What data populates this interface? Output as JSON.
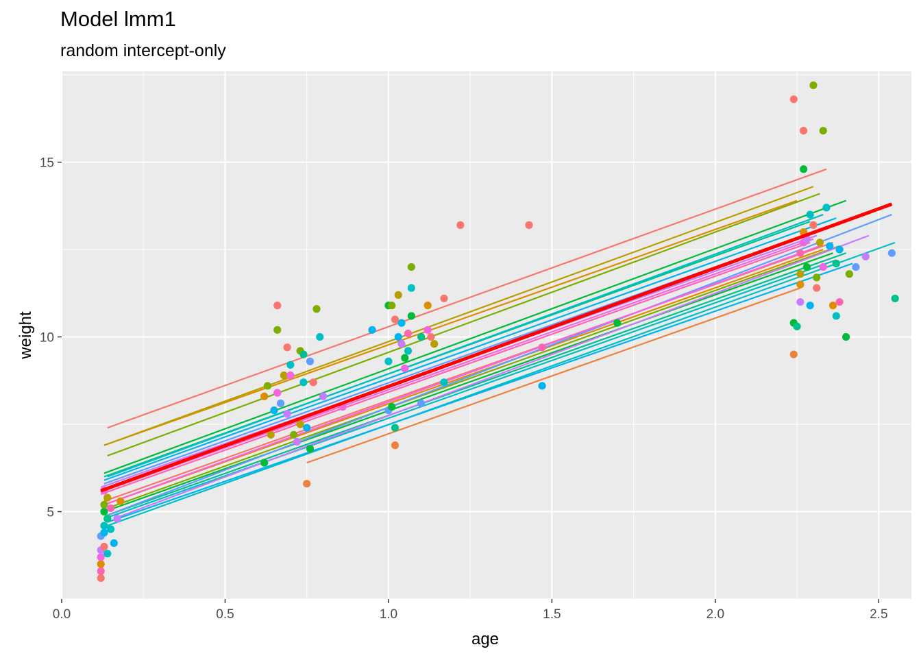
{
  "chart_data": {
    "type": "scatter",
    "title": "Model lmm1",
    "subtitle": "random intercept-only",
    "xlabel": "age",
    "ylabel": "weight",
    "xlim": [
      0.0,
      2.6
    ],
    "ylim": [
      2.5,
      17.6
    ],
    "x_ticks": [
      0.0,
      0.5,
      1.0,
      1.5,
      2.0,
      2.5
    ],
    "x_tick_labels": [
      "0.0",
      "0.5",
      "1.0",
      "1.5",
      "2.0",
      "2.5"
    ],
    "y_ticks": [
      5,
      10,
      15
    ],
    "y_tick_labels": [
      "5",
      "10",
      "15"
    ],
    "grid": true,
    "legend": "none",
    "population_line": {
      "color": "#ff0000",
      "x": [
        0.12,
        2.54
      ],
      "y": [
        5.6,
        13.8
      ]
    },
    "subject_lines": [
      {
        "color": "#f8766d",
        "x": [
          0.14,
          2.34
        ],
        "y": [
          7.4,
          14.8
        ]
      },
      {
        "color": "#de8c00",
        "x": [
          0.13,
          2.25
        ],
        "y": [
          6.9,
          13.9
        ]
      },
      {
        "color": "#b79f00",
        "x": [
          0.13,
          2.3
        ],
        "y": [
          6.9,
          14.3
        ]
      },
      {
        "color": "#7cae00",
        "x": [
          0.14,
          2.32
        ],
        "y": [
          6.6,
          14.1
        ]
      },
      {
        "color": "#00ba38",
        "x": [
          0.13,
          2.4
        ],
        "y": [
          6.1,
          13.9
        ]
      },
      {
        "color": "#00c08b",
        "x": [
          0.13,
          2.29
        ],
        "y": [
          6.0,
          13.3
        ]
      },
      {
        "color": "#00bfc4",
        "x": [
          0.14,
          2.33
        ],
        "y": [
          6.0,
          13.5
        ]
      },
      {
        "color": "#00b4f0",
        "x": [
          0.13,
          2.37
        ],
        "y": [
          5.9,
          13.4
        ]
      },
      {
        "color": "#619cff",
        "x": [
          0.13,
          2.33
        ],
        "y": [
          5.8,
          13.1
        ]
      },
      {
        "color": "#c77cff",
        "x": [
          0.12,
          2.31
        ],
        "y": [
          5.7,
          12.9
        ]
      },
      {
        "color": "#f564e3",
        "x": [
          0.13,
          2.3
        ],
        "y": [
          5.6,
          12.8
        ]
      },
      {
        "color": "#ff64b0",
        "x": [
          0.12,
          2.29
        ],
        "y": [
          5.5,
          12.7
        ]
      },
      {
        "color": "#f8766d",
        "x": [
          0.13,
          2.36
        ],
        "y": [
          5.3,
          12.7
        ]
      },
      {
        "color": "#de8c00",
        "x": [
          0.13,
          2.33
        ],
        "y": [
          5.2,
          12.5
        ]
      },
      {
        "color": "#7cae00",
        "x": [
          0.14,
          2.38
        ],
        "y": [
          5.1,
          12.6
        ]
      },
      {
        "color": "#00ba38",
        "x": [
          0.13,
          2.36
        ],
        "y": [
          5.0,
          12.4
        ]
      },
      {
        "color": "#00c08b",
        "x": [
          0.14,
          2.4
        ],
        "y": [
          4.9,
          12.4
        ]
      },
      {
        "color": "#00bfc4",
        "x": [
          0.13,
          2.37
        ],
        "y": [
          4.8,
          12.2
        ]
      },
      {
        "color": "#619cff",
        "x": [
          0.14,
          2.54
        ],
        "y": [
          4.9,
          13.5
        ]
      },
      {
        "color": "#c77cff",
        "x": [
          0.16,
          2.47
        ],
        "y": [
          4.8,
          12.9
        ]
      },
      {
        "color": "#00bfc4",
        "x": [
          0.14,
          2.55
        ],
        "y": [
          4.6,
          12.7
        ]
      },
      {
        "color": "#00b4f0",
        "x": [
          0.14,
          2.42
        ],
        "y": [
          4.7,
          12.1
        ]
      },
      {
        "color": "#ed813e",
        "x": [
          0.75,
          2.26
        ],
        "y": [
          6.4,
          11.4
        ]
      },
      {
        "color": "#f564e3",
        "x": [
          0.13,
          2.32
        ],
        "y": [
          5.2,
          12.6
        ]
      }
    ],
    "points": [
      {
        "x": 0.12,
        "y": 3.1,
        "color": "#f8766d"
      },
      {
        "x": 0.12,
        "y": 3.3,
        "color": "#ff64b0"
      },
      {
        "x": 0.12,
        "y": 3.5,
        "color": "#de8c00"
      },
      {
        "x": 0.12,
        "y": 3.7,
        "color": "#f564e3"
      },
      {
        "x": 0.12,
        "y": 3.9,
        "color": "#c77cff"
      },
      {
        "x": 0.13,
        "y": 4.0,
        "color": "#f8766d"
      },
      {
        "x": 0.12,
        "y": 4.3,
        "color": "#619cff"
      },
      {
        "x": 0.13,
        "y": 4.4,
        "color": "#00b4f0"
      },
      {
        "x": 0.13,
        "y": 4.6,
        "color": "#00bfc4"
      },
      {
        "x": 0.14,
        "y": 4.8,
        "color": "#00c08b"
      },
      {
        "x": 0.13,
        "y": 5.0,
        "color": "#00ba38"
      },
      {
        "x": 0.13,
        "y": 5.2,
        "color": "#7cae00"
      },
      {
        "x": 0.14,
        "y": 5.4,
        "color": "#b79f00"
      },
      {
        "x": 0.13,
        "y": 5.6,
        "color": "#f564e3"
      },
      {
        "x": 0.14,
        "y": 3.8,
        "color": "#00bfc4"
      },
      {
        "x": 0.16,
        "y": 4.1,
        "color": "#00b4f0"
      },
      {
        "x": 0.15,
        "y": 5.1,
        "color": "#ff64b0"
      },
      {
        "x": 0.18,
        "y": 5.3,
        "color": "#de8c00"
      },
      {
        "x": 0.17,
        "y": 4.8,
        "color": "#c77cff"
      },
      {
        "x": 0.15,
        "y": 4.5,
        "color": "#00bfc4"
      },
      {
        "x": 0.62,
        "y": 6.4,
        "color": "#00ba38"
      },
      {
        "x": 0.62,
        "y": 8.3,
        "color": "#de8c00"
      },
      {
        "x": 0.63,
        "y": 8.6,
        "color": "#7cae00"
      },
      {
        "x": 0.64,
        "y": 7.2,
        "color": "#b79f00"
      },
      {
        "x": 0.65,
        "y": 7.9,
        "color": "#00b4f0"
      },
      {
        "x": 0.66,
        "y": 8.4,
        "color": "#f564e3"
      },
      {
        "x": 0.66,
        "y": 10.2,
        "color": "#7cae00"
      },
      {
        "x": 0.66,
        "y": 10.9,
        "color": "#f8766d"
      },
      {
        "x": 0.67,
        "y": 8.1,
        "color": "#619cff"
      },
      {
        "x": 0.68,
        "y": 8.9,
        "color": "#b79f00"
      },
      {
        "x": 0.69,
        "y": 9.7,
        "color": "#f8766d"
      },
      {
        "x": 0.69,
        "y": 7.8,
        "color": "#c77cff"
      },
      {
        "x": 0.7,
        "y": 9.2,
        "color": "#00bfc4"
      },
      {
        "x": 0.7,
        "y": 8.9,
        "color": "#f564e3"
      },
      {
        "x": 0.71,
        "y": 7.2,
        "color": "#7cae00"
      },
      {
        "x": 0.72,
        "y": 7.0,
        "color": "#c77cff"
      },
      {
        "x": 0.73,
        "y": 7.5,
        "color": "#b79f00"
      },
      {
        "x": 0.73,
        "y": 9.6,
        "color": "#7cae00"
      },
      {
        "x": 0.74,
        "y": 9.5,
        "color": "#00c08b"
      },
      {
        "x": 0.74,
        "y": 8.7,
        "color": "#00bfc4"
      },
      {
        "x": 0.75,
        "y": 7.4,
        "color": "#00b4f0"
      },
      {
        "x": 0.75,
        "y": 5.8,
        "color": "#ed813e"
      },
      {
        "x": 0.76,
        "y": 6.8,
        "color": "#00ba38"
      },
      {
        "x": 0.76,
        "y": 9.3,
        "color": "#619cff"
      },
      {
        "x": 0.77,
        "y": 8.7,
        "color": "#f8766d"
      },
      {
        "x": 0.78,
        "y": 10.8,
        "color": "#7cae00"
      },
      {
        "x": 0.79,
        "y": 10.0,
        "color": "#00bfc4"
      },
      {
        "x": 0.8,
        "y": 8.3,
        "color": "#c77cff"
      },
      {
        "x": 0.86,
        "y": 8.0,
        "color": "#f564e3"
      },
      {
        "x": 0.95,
        "y": 10.2,
        "color": "#00b4f0"
      },
      {
        "x": 1.0,
        "y": 10.9,
        "color": "#00ba38"
      },
      {
        "x": 1.01,
        "y": 10.9,
        "color": "#7cae00"
      },
      {
        "x": 1.0,
        "y": 9.3,
        "color": "#00bfc4"
      },
      {
        "x": 1.0,
        "y": 7.9,
        "color": "#619cff"
      },
      {
        "x": 1.01,
        "y": 8.0,
        "color": "#00ba38"
      },
      {
        "x": 1.02,
        "y": 10.5,
        "color": "#f8766d"
      },
      {
        "x": 1.02,
        "y": 7.4,
        "color": "#00c08b"
      },
      {
        "x": 1.02,
        "y": 6.9,
        "color": "#ed813e"
      },
      {
        "x": 1.03,
        "y": 10.0,
        "color": "#00b4f0"
      },
      {
        "x": 1.03,
        "y": 11.2,
        "color": "#b79f00"
      },
      {
        "x": 1.04,
        "y": 9.8,
        "color": "#c77cff"
      },
      {
        "x": 1.04,
        "y": 10.4,
        "color": "#00b4f0"
      },
      {
        "x": 1.05,
        "y": 9.1,
        "color": "#f564e3"
      },
      {
        "x": 1.05,
        "y": 9.4,
        "color": "#00ba38"
      },
      {
        "x": 1.06,
        "y": 10.1,
        "color": "#ff64b0"
      },
      {
        "x": 1.06,
        "y": 9.6,
        "color": "#00bfc4"
      },
      {
        "x": 1.07,
        "y": 10.6,
        "color": "#00ba38"
      },
      {
        "x": 1.07,
        "y": 11.4,
        "color": "#00bfc4"
      },
      {
        "x": 1.07,
        "y": 12.0,
        "color": "#7cae00"
      },
      {
        "x": 1.1,
        "y": 8.1,
        "color": "#619cff"
      },
      {
        "x": 1.1,
        "y": 10.0,
        "color": "#00c08b"
      },
      {
        "x": 1.12,
        "y": 10.9,
        "color": "#de8c00"
      },
      {
        "x": 1.12,
        "y": 10.2,
        "color": "#f564e3"
      },
      {
        "x": 1.13,
        "y": 10.0,
        "color": "#f8766d"
      },
      {
        "x": 1.14,
        "y": 9.8,
        "color": "#b79f00"
      },
      {
        "x": 1.17,
        "y": 11.1,
        "color": "#f8766d"
      },
      {
        "x": 1.17,
        "y": 8.7,
        "color": "#00bfc4"
      },
      {
        "x": 1.22,
        "y": 13.2,
        "color": "#f8766d"
      },
      {
        "x": 1.43,
        "y": 13.2,
        "color": "#f8766d"
      },
      {
        "x": 1.47,
        "y": 9.7,
        "color": "#ff64b0"
      },
      {
        "x": 1.47,
        "y": 8.6,
        "color": "#00b4f0"
      },
      {
        "x": 1.7,
        "y": 10.4,
        "color": "#00ba38"
      },
      {
        "x": 2.24,
        "y": 16.8,
        "color": "#f8766d"
      },
      {
        "x": 2.27,
        "y": 15.9,
        "color": "#f8766d"
      },
      {
        "x": 2.3,
        "y": 17.2,
        "color": "#7cae00"
      },
      {
        "x": 2.33,
        "y": 15.9,
        "color": "#7cae00"
      },
      {
        "x": 2.27,
        "y": 14.8,
        "color": "#00ba38"
      },
      {
        "x": 2.24,
        "y": 10.4,
        "color": "#00ba38"
      },
      {
        "x": 2.25,
        "y": 10.3,
        "color": "#00c08b"
      },
      {
        "x": 2.24,
        "y": 9.5,
        "color": "#ed813e"
      },
      {
        "x": 2.26,
        "y": 11.0,
        "color": "#c77cff"
      },
      {
        "x": 2.29,
        "y": 10.9,
        "color": "#00b4f0"
      },
      {
        "x": 2.31,
        "y": 11.4,
        "color": "#f8766d"
      },
      {
        "x": 2.26,
        "y": 11.5,
        "color": "#de8c00"
      },
      {
        "x": 2.26,
        "y": 11.8,
        "color": "#b79f00"
      },
      {
        "x": 2.28,
        "y": 12.0,
        "color": "#00ba38"
      },
      {
        "x": 2.31,
        "y": 11.7,
        "color": "#7cae00"
      },
      {
        "x": 2.26,
        "y": 12.4,
        "color": "#ff64b0"
      },
      {
        "x": 2.27,
        "y": 12.7,
        "color": "#f564e3"
      },
      {
        "x": 2.28,
        "y": 12.8,
        "color": "#c77cff"
      },
      {
        "x": 2.29,
        "y": 13.5,
        "color": "#00bfc4"
      },
      {
        "x": 2.3,
        "y": 13.2,
        "color": "#f8766d"
      },
      {
        "x": 2.32,
        "y": 12.7,
        "color": "#b79f00"
      },
      {
        "x": 2.33,
        "y": 12.0,
        "color": "#f564e3"
      },
      {
        "x": 2.34,
        "y": 13.7,
        "color": "#00bfc4"
      },
      {
        "x": 2.36,
        "y": 10.9,
        "color": "#de8c00"
      },
      {
        "x": 2.37,
        "y": 10.6,
        "color": "#00bfc4"
      },
      {
        "x": 2.37,
        "y": 12.1,
        "color": "#00c08b"
      },
      {
        "x": 2.38,
        "y": 11.0,
        "color": "#ff64b0"
      },
      {
        "x": 2.38,
        "y": 12.5,
        "color": "#00b4f0"
      },
      {
        "x": 2.4,
        "y": 10.0,
        "color": "#00ba38"
      },
      {
        "x": 2.41,
        "y": 11.8,
        "color": "#7cae00"
      },
      {
        "x": 2.43,
        "y": 12.0,
        "color": "#619cff"
      },
      {
        "x": 2.46,
        "y": 12.3,
        "color": "#c77cff"
      },
      {
        "x": 2.54,
        "y": 12.4,
        "color": "#619cff"
      },
      {
        "x": 2.55,
        "y": 11.1,
        "color": "#00c08b"
      },
      {
        "x": 2.27,
        "y": 13.0,
        "color": "#de8c00"
      },
      {
        "x": 2.35,
        "y": 12.6,
        "color": "#00b4f0"
      }
    ]
  }
}
